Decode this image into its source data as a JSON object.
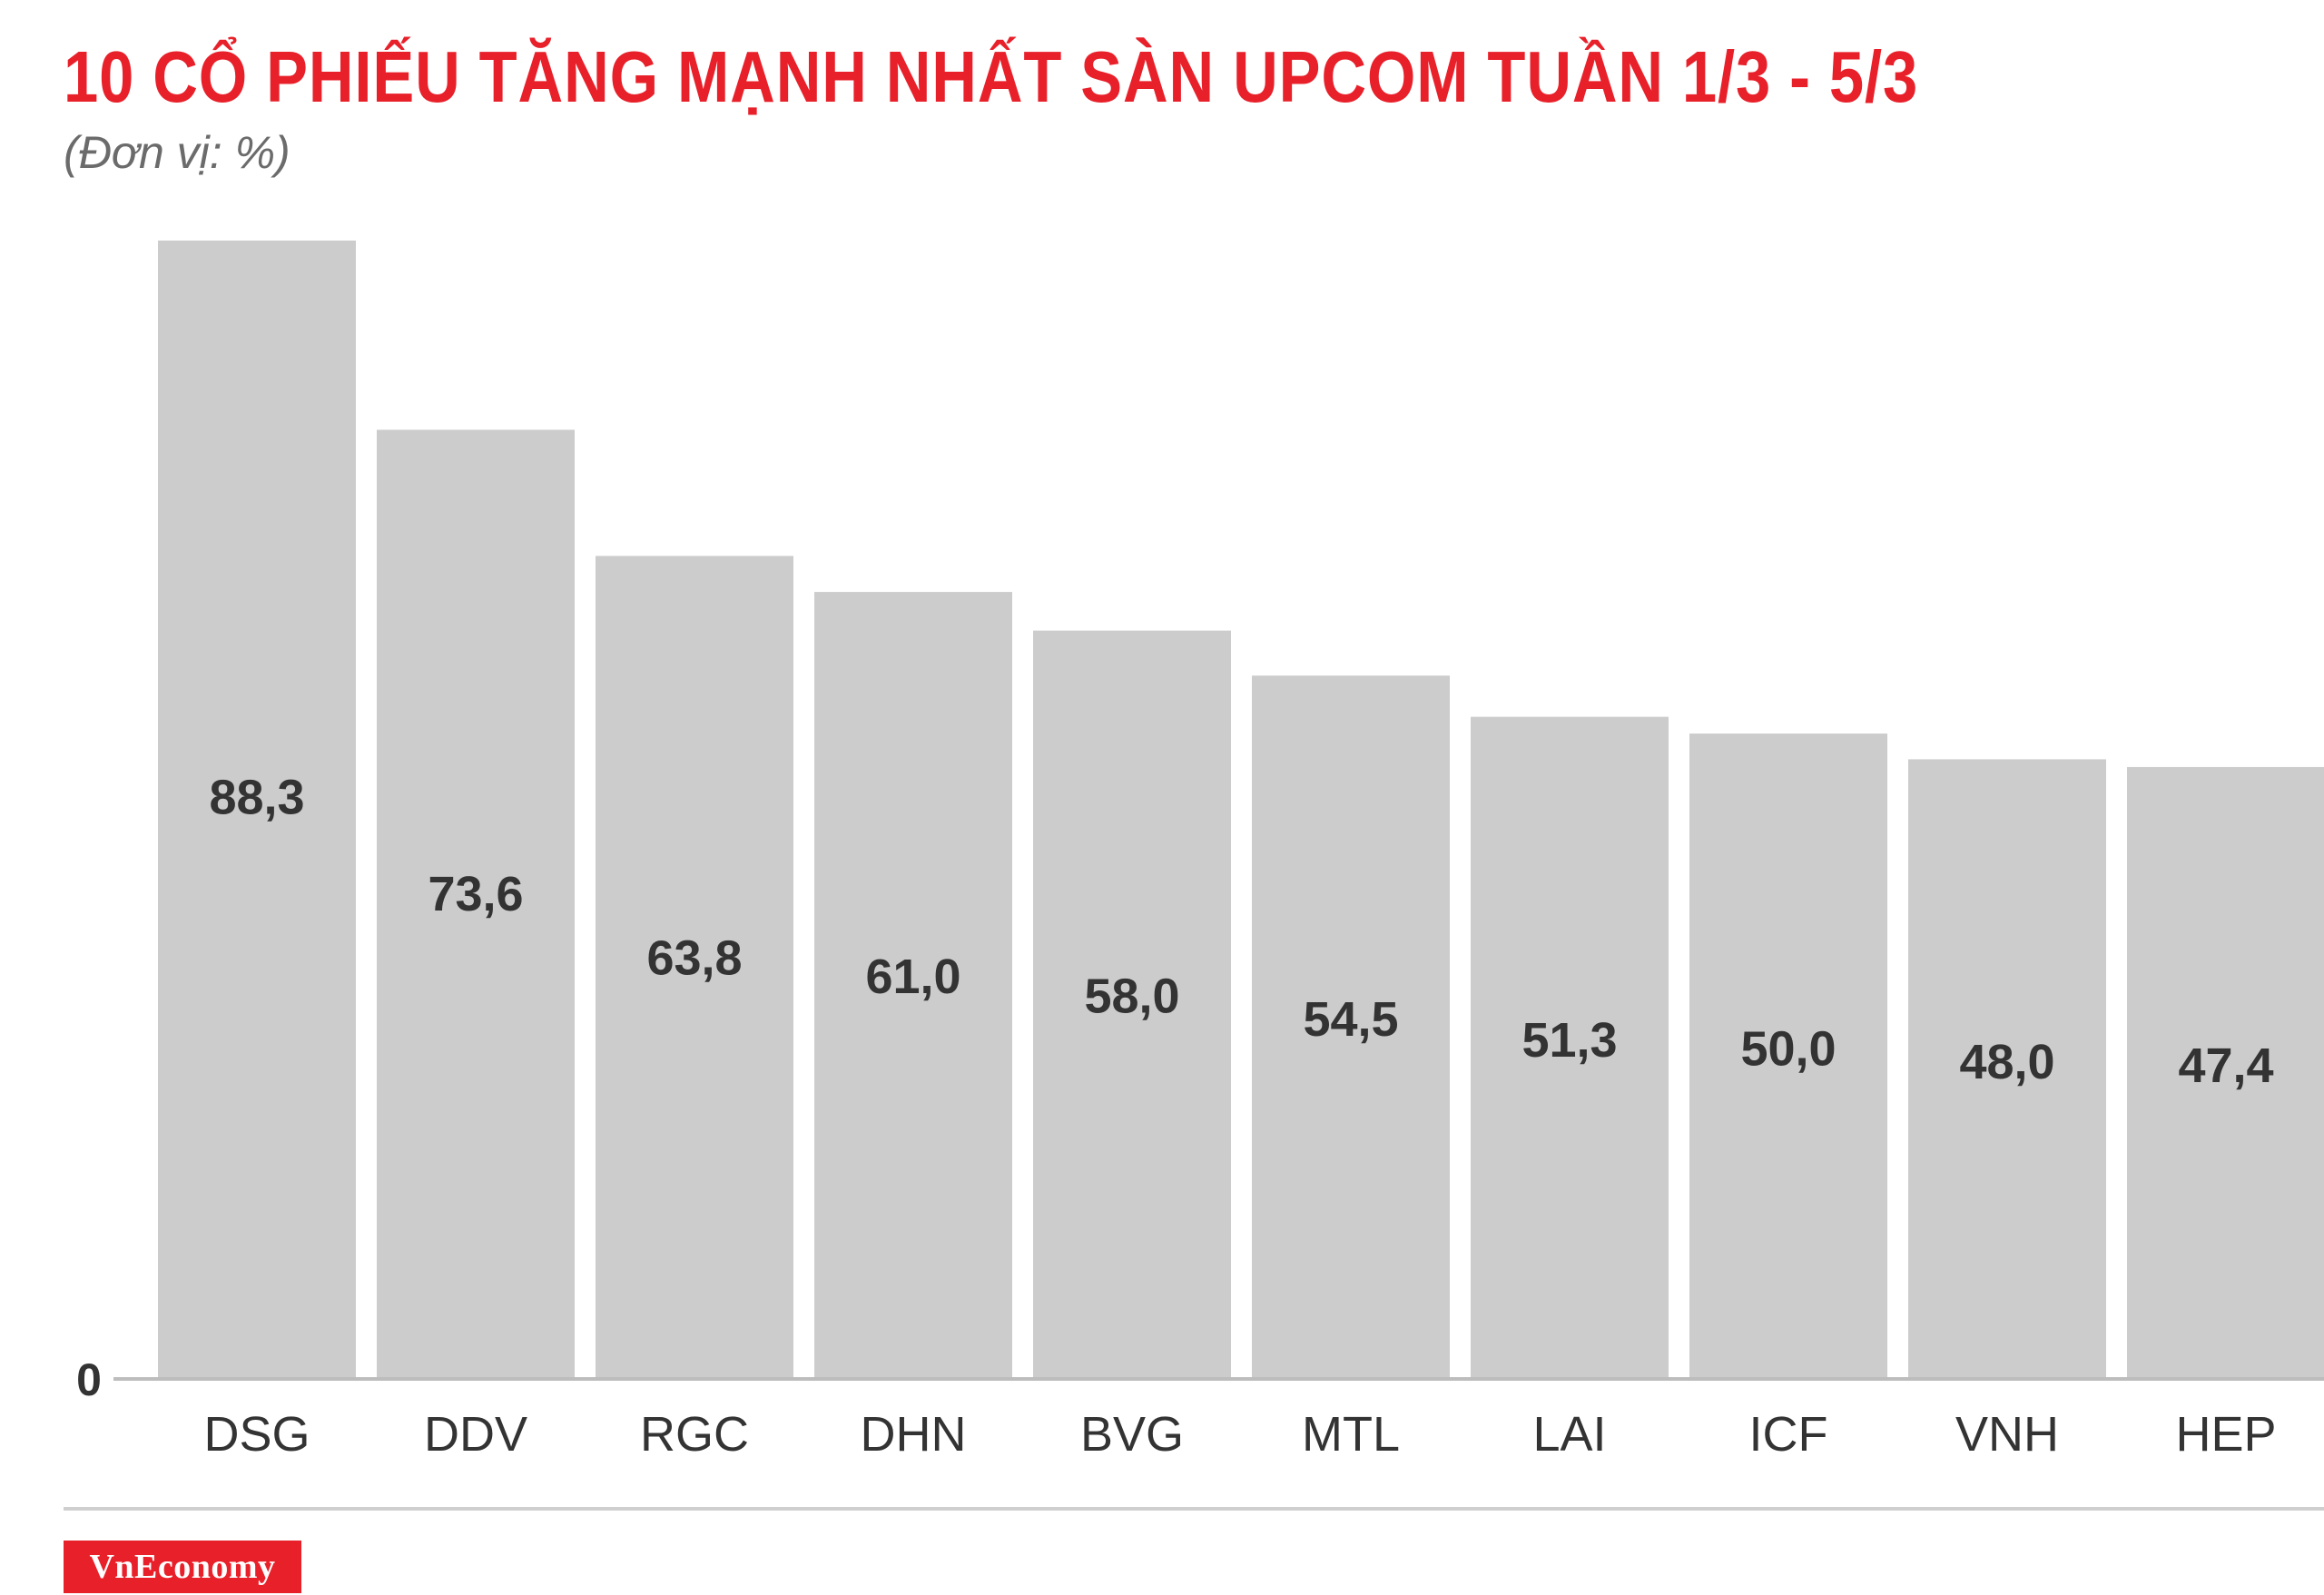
{
  "header": {
    "title": "10 CỔ PHIẾU TĂNG MẠNH NHẤT SÀN UPCOM TUẦN 1/3 - 5/3",
    "subtitle": "(Đơn vị: %)"
  },
  "footer": {
    "brand": "VnEconomy"
  },
  "colors": {
    "title": "#e8202a",
    "bar": "#cccccc",
    "text": "#333333",
    "brand_bg": "#e8202a"
  },
  "chart_data": {
    "type": "bar",
    "title": "10 CỔ PHIẾU TĂNG MẠNH NHẤT SÀN UPCOM TUẦN 1/3 - 5/3",
    "subtitle": "(Đơn vị: %)",
    "categories": [
      "DSG",
      "DDV",
      "RGC",
      "DHN",
      "BVG",
      "MTL",
      "LAI",
      "ICF",
      "VNH",
      "HEP"
    ],
    "values": [
      88.3,
      73.6,
      63.8,
      61.0,
      58.0,
      54.5,
      51.3,
      50.0,
      48.0,
      47.4
    ],
    "value_labels": [
      "88,3",
      "73,6",
      "63,8",
      "61,0",
      "58,0",
      "54,5",
      "51,3",
      "50,0",
      "48,0",
      "47,4"
    ],
    "y_tick_labels": [
      "0"
    ],
    "ylim": [
      0,
      88.3
    ],
    "xlabel": "",
    "ylabel": "",
    "grid": false,
    "legend": "none"
  }
}
